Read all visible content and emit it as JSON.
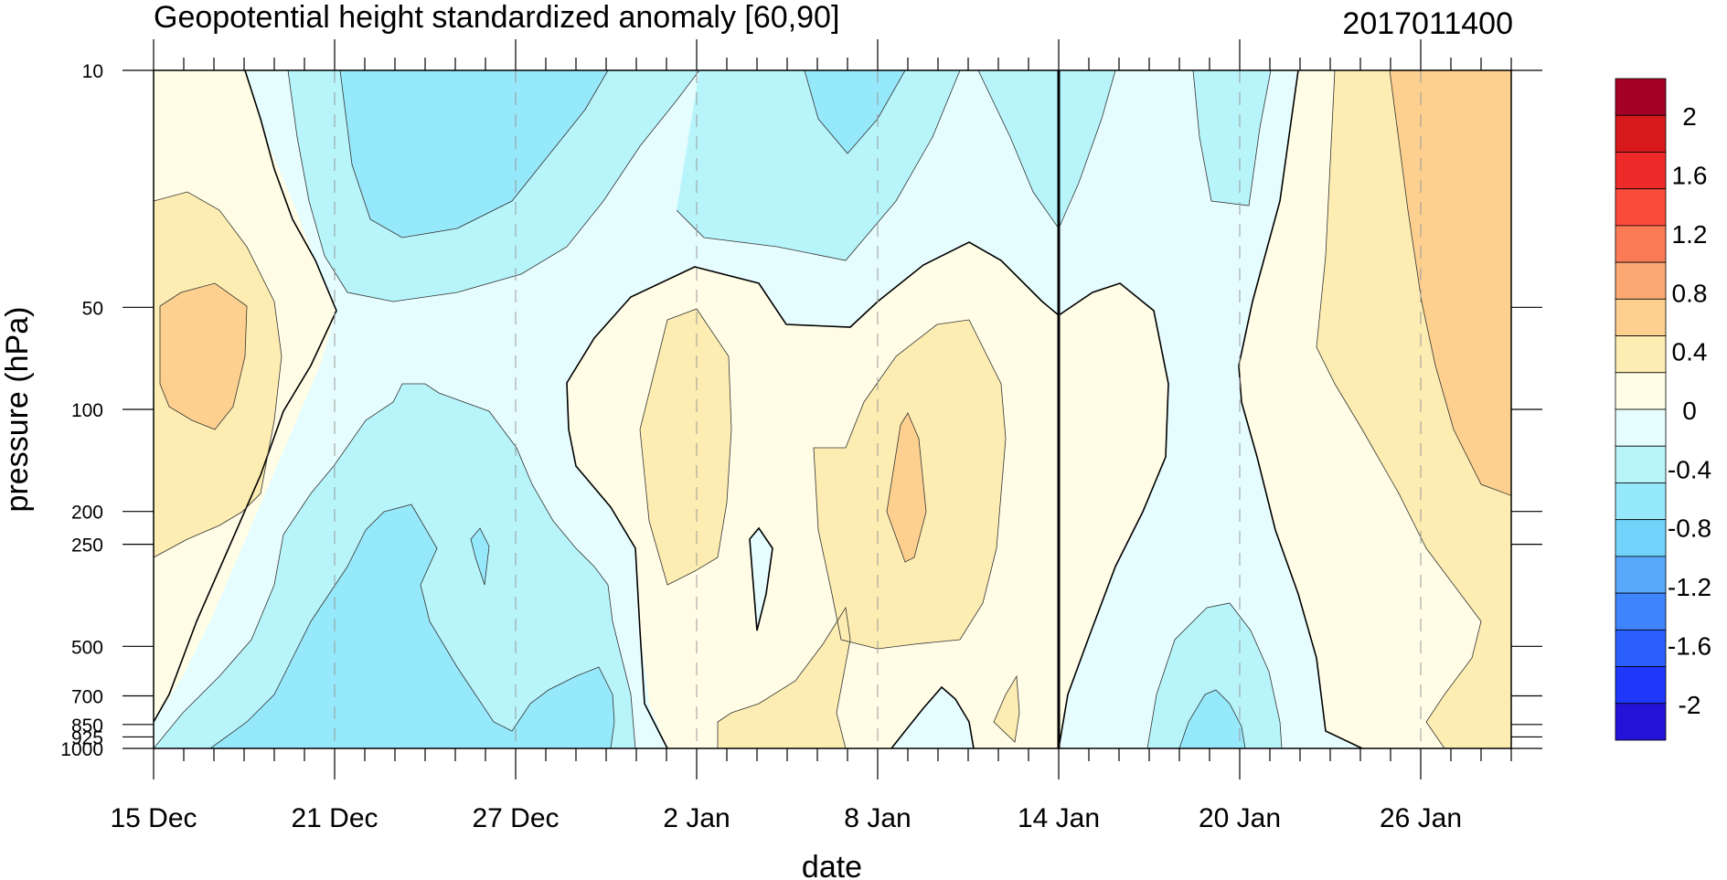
{
  "chart_data": {
    "type": "contour",
    "title": "Geopotential height standardized anomaly [60,90]",
    "date_label": "2017011400",
    "xlabel": "date",
    "ylabel": "pressure (hPa)",
    "y_scale": "log",
    "y_reversed": true,
    "ylim": [
      1000,
      10
    ],
    "x_ticks": [
      "15 Dec",
      "21 Dec",
      "27 Dec",
      "2 Jan",
      "8 Jan",
      "14 Jan",
      "20 Jan",
      "26 Jan"
    ],
    "y_ticks": [
      "10",
      "50",
      "100",
      "200",
      "250",
      "500",
      "700",
      "850",
      "925",
      "1000"
    ],
    "vertical_line_at": "14 Jan",
    "colorbar": {
      "labels": [
        "2",
        "1.6",
        "1.2",
        "0.8",
        "0.4",
        "0",
        "-0.4",
        "-0.8",
        "-1.2",
        "-1.6",
        "-2"
      ],
      "colors": [
        "#a50026",
        "#d7191c",
        "#ee2a2a",
        "#fa4b3a",
        "#fb7b57",
        "#fba873",
        "#fdd08f",
        "#fdedb2",
        "#fffde6",
        "#e6fdff",
        "#b8f5fb",
        "#96e8fb",
        "#72d4fb",
        "#58a8fb",
        "#3e84fb",
        "#2a5ffb",
        "#1e37fb",
        "#2512d9"
      ]
    },
    "regions": {
      "pos_0_4": "#fffde6",
      "pos_4_8": "#fdedb2",
      "pos_8_12": "#fdd08f",
      "neg_0_4": "#e6fdff",
      "neg_4_8": "#b8f5fb",
      "neg_8_12": "#96e8fb",
      "neg_12_16": "#72d4fb"
    }
  }
}
